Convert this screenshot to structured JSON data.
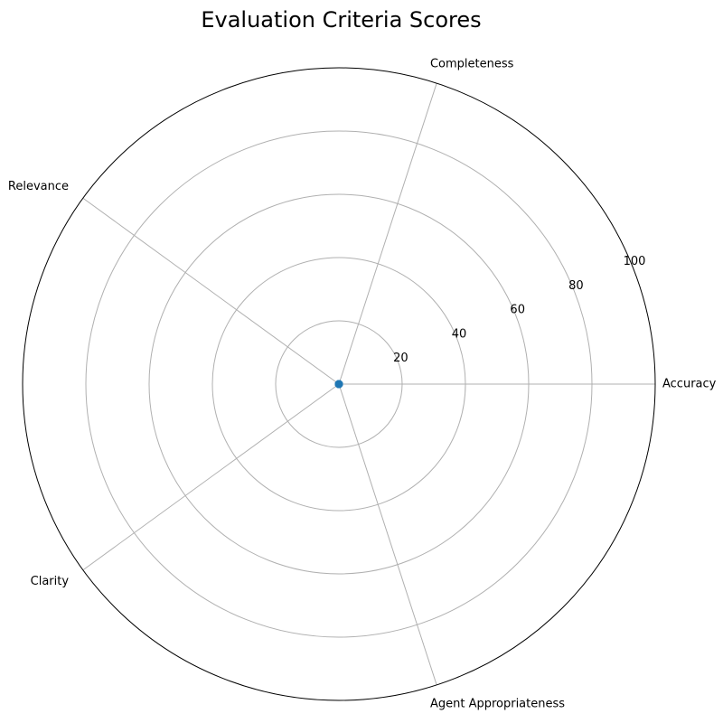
{
  "chart_data": {
    "type": "radar",
    "title": "Evaluation Criteria Scores",
    "categories": [
      "Accuracy",
      "Completeness",
      "Relevance",
      "Clarity",
      "Agent Appropriateness"
    ],
    "series": [
      {
        "values": [
          0,
          0,
          0,
          0,
          0
        ],
        "color": "#1f77b4"
      }
    ],
    "rlim": [
      0,
      100
    ],
    "rticks": [
      20,
      40,
      60,
      80,
      100
    ],
    "grid": true,
    "grid_color": "#b0b0b0",
    "frame_color": "#000000"
  }
}
